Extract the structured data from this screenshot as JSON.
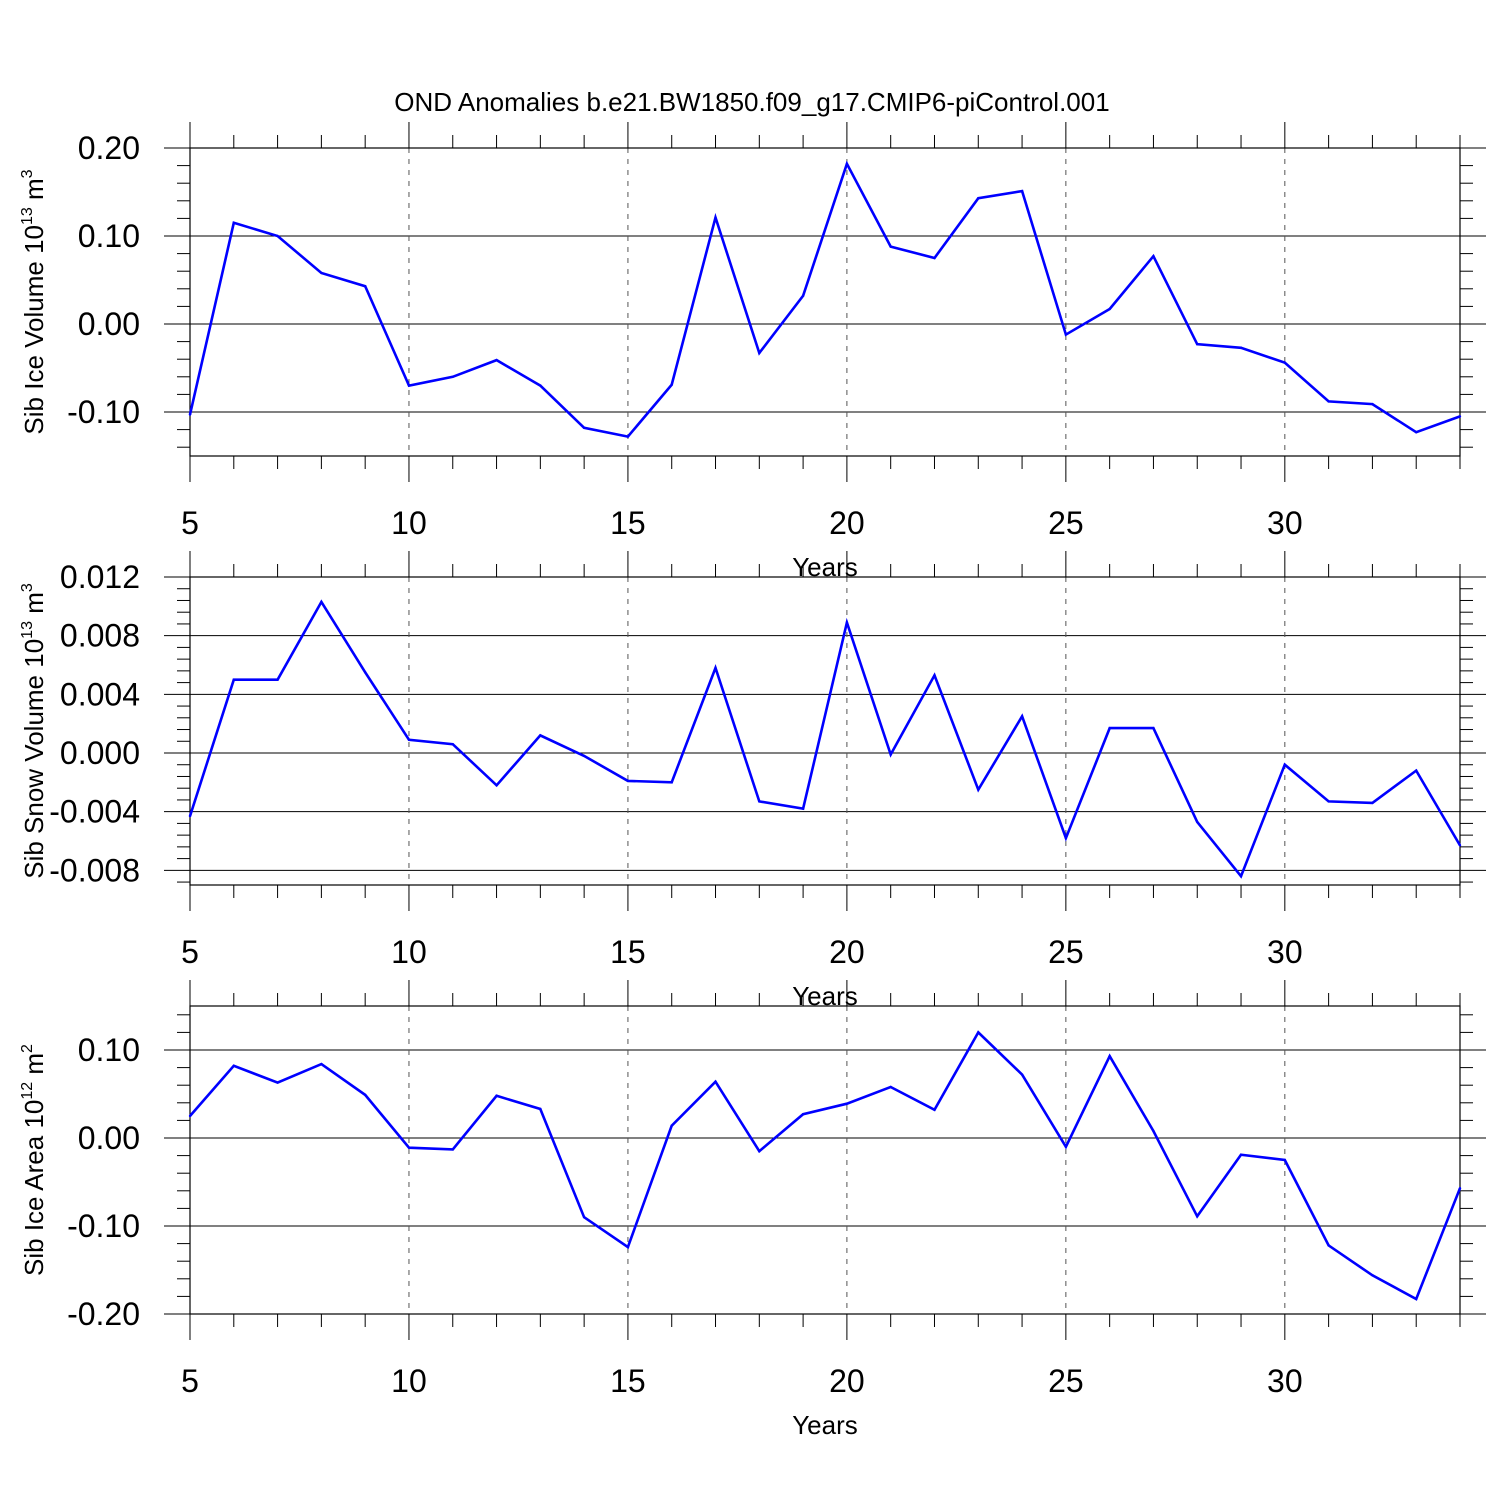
{
  "title": "OND Anomalies b.e21.BW1850.f09_g17.CMIP6-piControl.001",
  "colors": {
    "series": "#0000ff",
    "axis": "#000000",
    "grid": "#555555"
  },
  "chart_data": [
    {
      "type": "line",
      "xlabel": "Years",
      "ylabel_main": "Sib Ice Volume 10",
      "ylabel_exp": "13",
      "ylabel_unit": " m",
      "ylabel_unit_exp": "3",
      "xlim": [
        5,
        34
      ],
      "ylim": [
        -0.15,
        0.2
      ],
      "xticks": [
        5,
        10,
        15,
        20,
        25,
        30
      ],
      "xtick_labels": [
        "5",
        "10",
        "15",
        "20",
        "25",
        "30"
      ],
      "yticks": [
        -0.1,
        0.0,
        0.1,
        0.2
      ],
      "ytick_labels": [
        "-0.10",
        "0.00",
        "0.10",
        "0.20"
      ],
      "x": [
        5,
        6,
        7,
        8,
        9,
        10,
        11,
        12,
        13,
        14,
        15,
        16,
        17,
        18,
        19,
        20,
        21,
        22,
        23,
        24,
        25,
        26,
        27,
        28,
        29,
        30,
        31,
        32,
        33,
        34
      ],
      "values": [
        -0.103,
        0.115,
        0.1,
        0.058,
        0.043,
        -0.07,
        -0.06,
        -0.041,
        -0.07,
        -0.118,
        -0.128,
        -0.069,
        0.121,
        -0.033,
        0.032,
        0.182,
        0.088,
        0.075,
        0.143,
        0.151,
        -0.012,
        0.017,
        0.077,
        -0.023,
        -0.027,
        -0.044,
        -0.088,
        -0.091,
        -0.123,
        -0.105
      ]
    },
    {
      "type": "line",
      "xlabel": "Years",
      "ylabel_main": "Sib Snow Volume 10",
      "ylabel_exp": "13",
      "ylabel_unit": " m",
      "ylabel_unit_exp": "3",
      "xlim": [
        5,
        34
      ],
      "ylim": [
        -0.009,
        0.012
      ],
      "xticks": [
        5,
        10,
        15,
        20,
        25,
        30
      ],
      "xtick_labels": [
        "5",
        "10",
        "15",
        "20",
        "25",
        "30"
      ],
      "yticks": [
        -0.008,
        -0.004,
        0.0,
        0.004,
        0.008,
        0.012
      ],
      "ytick_labels": [
        "-0.008",
        "-0.004",
        "0.000",
        "0.004",
        "0.008",
        "0.012"
      ],
      "x": [
        5,
        6,
        7,
        8,
        9,
        10,
        11,
        12,
        13,
        14,
        15,
        16,
        17,
        18,
        19,
        20,
        21,
        22,
        23,
        24,
        25,
        26,
        27,
        28,
        29,
        30,
        31,
        32,
        33,
        34
      ],
      "values": [
        -0.0043,
        0.005,
        0.005,
        0.0103,
        0.0055,
        0.0009,
        0.0006,
        -0.0022,
        0.0012,
        -0.0002,
        -0.0019,
        -0.002,
        0.0058,
        -0.0033,
        -0.0038,
        0.0089,
        -0.0001,
        0.0053,
        -0.0025,
        0.0025,
        -0.0058,
        0.0017,
        0.0017,
        -0.0047,
        -0.0084,
        -0.0008,
        -0.0033,
        -0.0034,
        -0.0012,
        -0.0063
      ]
    },
    {
      "type": "line",
      "xlabel": "Years",
      "ylabel_main": "Sib Ice Area 10",
      "ylabel_exp": "12",
      "ylabel_unit": " m",
      "ylabel_unit_exp": "2",
      "xlim": [
        5,
        34
      ],
      "ylim": [
        -0.2,
        0.15
      ],
      "xticks": [
        5,
        10,
        15,
        20,
        25,
        30
      ],
      "xtick_labels": [
        "5",
        "10",
        "15",
        "20",
        "25",
        "30"
      ],
      "yticks": [
        -0.2,
        -0.1,
        0.0,
        0.1
      ],
      "ytick_labels": [
        "-0.20",
        "-0.10",
        "0.00",
        "0.10"
      ],
      "x": [
        5,
        6,
        7,
        8,
        9,
        10,
        11,
        12,
        13,
        14,
        15,
        16,
        17,
        18,
        19,
        20,
        21,
        22,
        23,
        24,
        25,
        26,
        27,
        28,
        29,
        30,
        31,
        32,
        33,
        34
      ],
      "values": [
        0.025,
        0.082,
        0.063,
        0.084,
        0.049,
        -0.011,
        -0.013,
        0.048,
        0.033,
        -0.09,
        -0.124,
        0.014,
        0.064,
        -0.015,
        0.027,
        0.039,
        0.058,
        0.032,
        0.12,
        0.072,
        -0.01,
        0.093,
        0.008,
        -0.089,
        -0.019,
        -0.025,
        -0.122,
        -0.156,
        -0.183,
        -0.057
      ]
    }
  ]
}
